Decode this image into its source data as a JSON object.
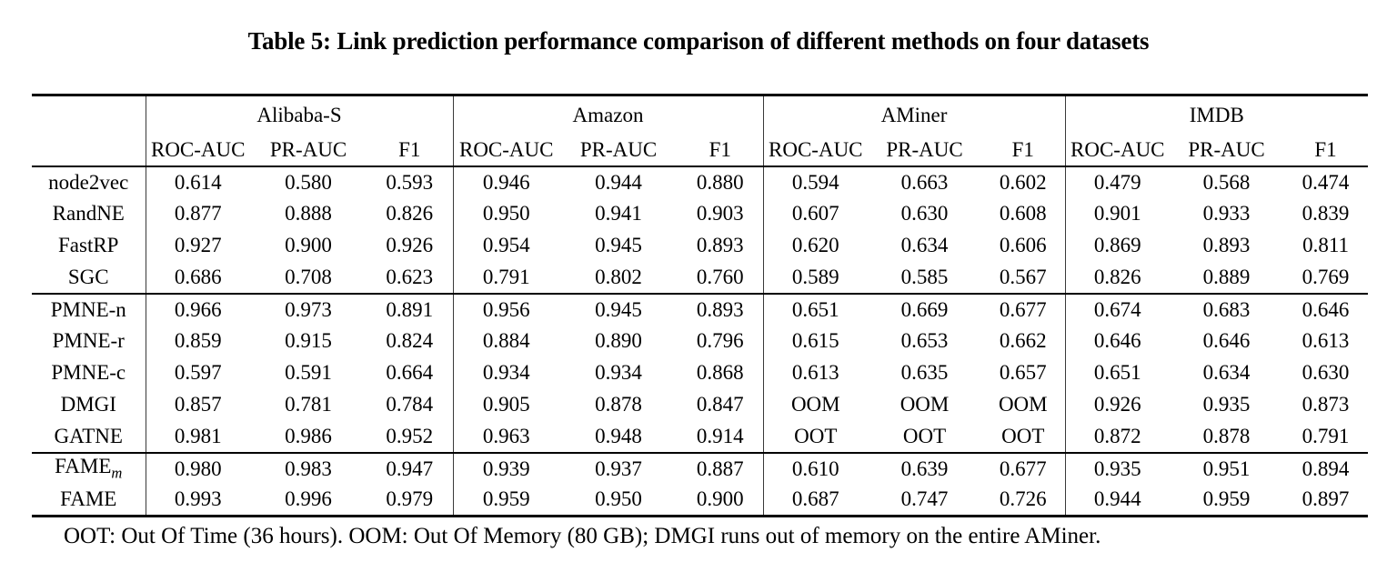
{
  "title": "Table 5: Link prediction performance comparison of different methods on four datasets",
  "footnote": "OOT: Out Of Time (36 hours). OOM: Out Of Memory (80 GB); DMGI runs out of memory on the entire AMiner.",
  "table": {
    "datasets": [
      "Alibaba-S",
      "Amazon",
      "AMiner",
      "IMDB"
    ],
    "metrics": [
      "ROC-AUC",
      "PR-AUC",
      "F1"
    ],
    "sections": [
      {
        "rows": [
          {
            "method": "node2vec",
            "values": [
              "0.614",
              "0.580",
              "0.593",
              "0.946",
              "0.944",
              "0.880",
              "0.594",
              "0.663",
              "0.602",
              "0.479",
              "0.568",
              "0.474"
            ],
            "bold": []
          },
          {
            "method": "RandNE",
            "values": [
              "0.877",
              "0.888",
              "0.826",
              "0.950",
              "0.941",
              "0.903",
              "0.607",
              "0.630",
              "0.608",
              "0.901",
              "0.933",
              "0.839"
            ],
            "bold": []
          },
          {
            "method": "FastRP",
            "values": [
              "0.927",
              "0.900",
              "0.926",
              "0.954",
              "0.945",
              "0.893",
              "0.620",
              "0.634",
              "0.606",
              "0.869",
              "0.893",
              "0.811"
            ],
            "bold": []
          },
          {
            "method": "SGC",
            "values": [
              "0.686",
              "0.708",
              "0.623",
              "0.791",
              "0.802",
              "0.760",
              "0.589",
              "0.585",
              "0.567",
              "0.826",
              "0.889",
              "0.769"
            ],
            "bold": []
          }
        ]
      },
      {
        "rows": [
          {
            "method": "PMNE-n",
            "values": [
              "0.966",
              "0.973",
              "0.891",
              "0.956",
              "0.945",
              "0.893",
              "0.651",
              "0.669",
              "0.677",
              "0.674",
              "0.683",
              "0.646"
            ],
            "bold": []
          },
          {
            "method": "PMNE-r",
            "values": [
              "0.859",
              "0.915",
              "0.824",
              "0.884",
              "0.890",
              "0.796",
              "0.615",
              "0.653",
              "0.662",
              "0.646",
              "0.646",
              "0.613"
            ],
            "bold": []
          },
          {
            "method": "PMNE-c",
            "values": [
              "0.597",
              "0.591",
              "0.664",
              "0.934",
              "0.934",
              "0.868",
              "0.613",
              "0.635",
              "0.657",
              "0.651",
              "0.634",
              "0.630"
            ],
            "bold": []
          },
          {
            "method": "DMGI",
            "values": [
              "0.857",
              "0.781",
              "0.784",
              "0.905",
              "0.878",
              "0.847",
              "OOM",
              "OOM",
              "OOM",
              "0.926",
              "0.935",
              "0.873"
            ],
            "bold": []
          },
          {
            "method": "GATNE",
            "values": [
              "0.981",
              "0.986",
              "0.952",
              "0.963",
              "0.948",
              "0.914",
              "OOT",
              "OOT",
              "OOT",
              "0.872",
              "0.878",
              "0.791"
            ],
            "bold": [
              3,
              5
            ]
          }
        ]
      },
      {
        "rows": [
          {
            "method": "FAME",
            "method_sub": "m",
            "values": [
              "0.980",
              "0.983",
              "0.947",
              "0.939",
              "0.937",
              "0.887",
              "0.610",
              "0.639",
              "0.677",
              "0.935",
              "0.951",
              "0.894"
            ],
            "bold": []
          },
          {
            "method": "FAME",
            "method_bold": true,
            "values": [
              "0.993",
              "0.996",
              "0.979",
              "0.959",
              "0.950",
              "0.900",
              "0.687",
              "0.747",
              "0.726",
              "0.944",
              "0.959",
              "0.897"
            ],
            "bold": [
              0,
              1,
              2,
              4,
              6,
              7,
              8,
              9,
              10,
              11
            ]
          }
        ]
      }
    ]
  }
}
